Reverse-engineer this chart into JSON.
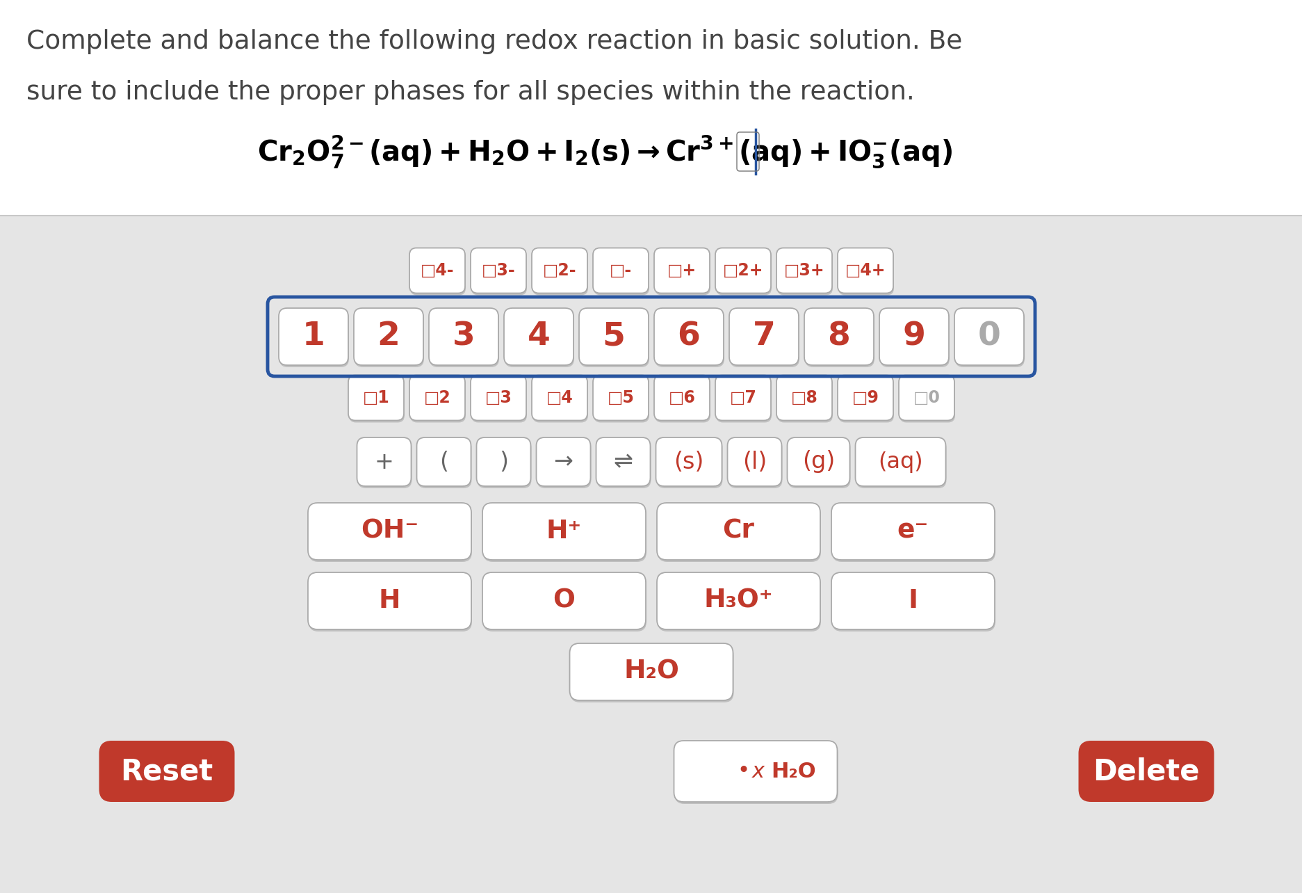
{
  "bg_color": "#e5e5e5",
  "white": "#ffffff",
  "red": "#c0392b",
  "blue": "#2855a0",
  "dark_gray": "#444444",
  "mid_gray": "#888888",
  "light_gray": "#aaaaaa",
  "title_line1": "Complete and balance the following redox reaction in basic solution. Be",
  "title_line2": "sure to include the proper phases for all species within the reaction.",
  "row0_labels": [
    "□4-",
    "□3-",
    "□2-",
    "□-",
    "□+",
    "□2+",
    "□3+",
    "□4+"
  ],
  "row1_labels": [
    "1",
    "2",
    "3",
    "4",
    "5",
    "6",
    "7",
    "8",
    "9",
    "0"
  ],
  "row2_labels": [
    "□1",
    "□2",
    "□3",
    "□4",
    "□5",
    "□6",
    "□7",
    "□8",
    "□9",
    "□0"
  ],
  "row3_labels": [
    "+",
    "(",
    ")",
    "→",
    "⇌",
    "(s)",
    "(l)",
    "(g)",
    "(aq)"
  ],
  "row4_labels": [
    "OH⁻",
    "H⁺",
    "Cr",
    "e⁻"
  ],
  "row5_labels": [
    "H",
    "O",
    "H₃O⁺",
    "I"
  ],
  "row6_labels": [
    "H₂O"
  ],
  "bottom_mid_label": "• x H₂O"
}
